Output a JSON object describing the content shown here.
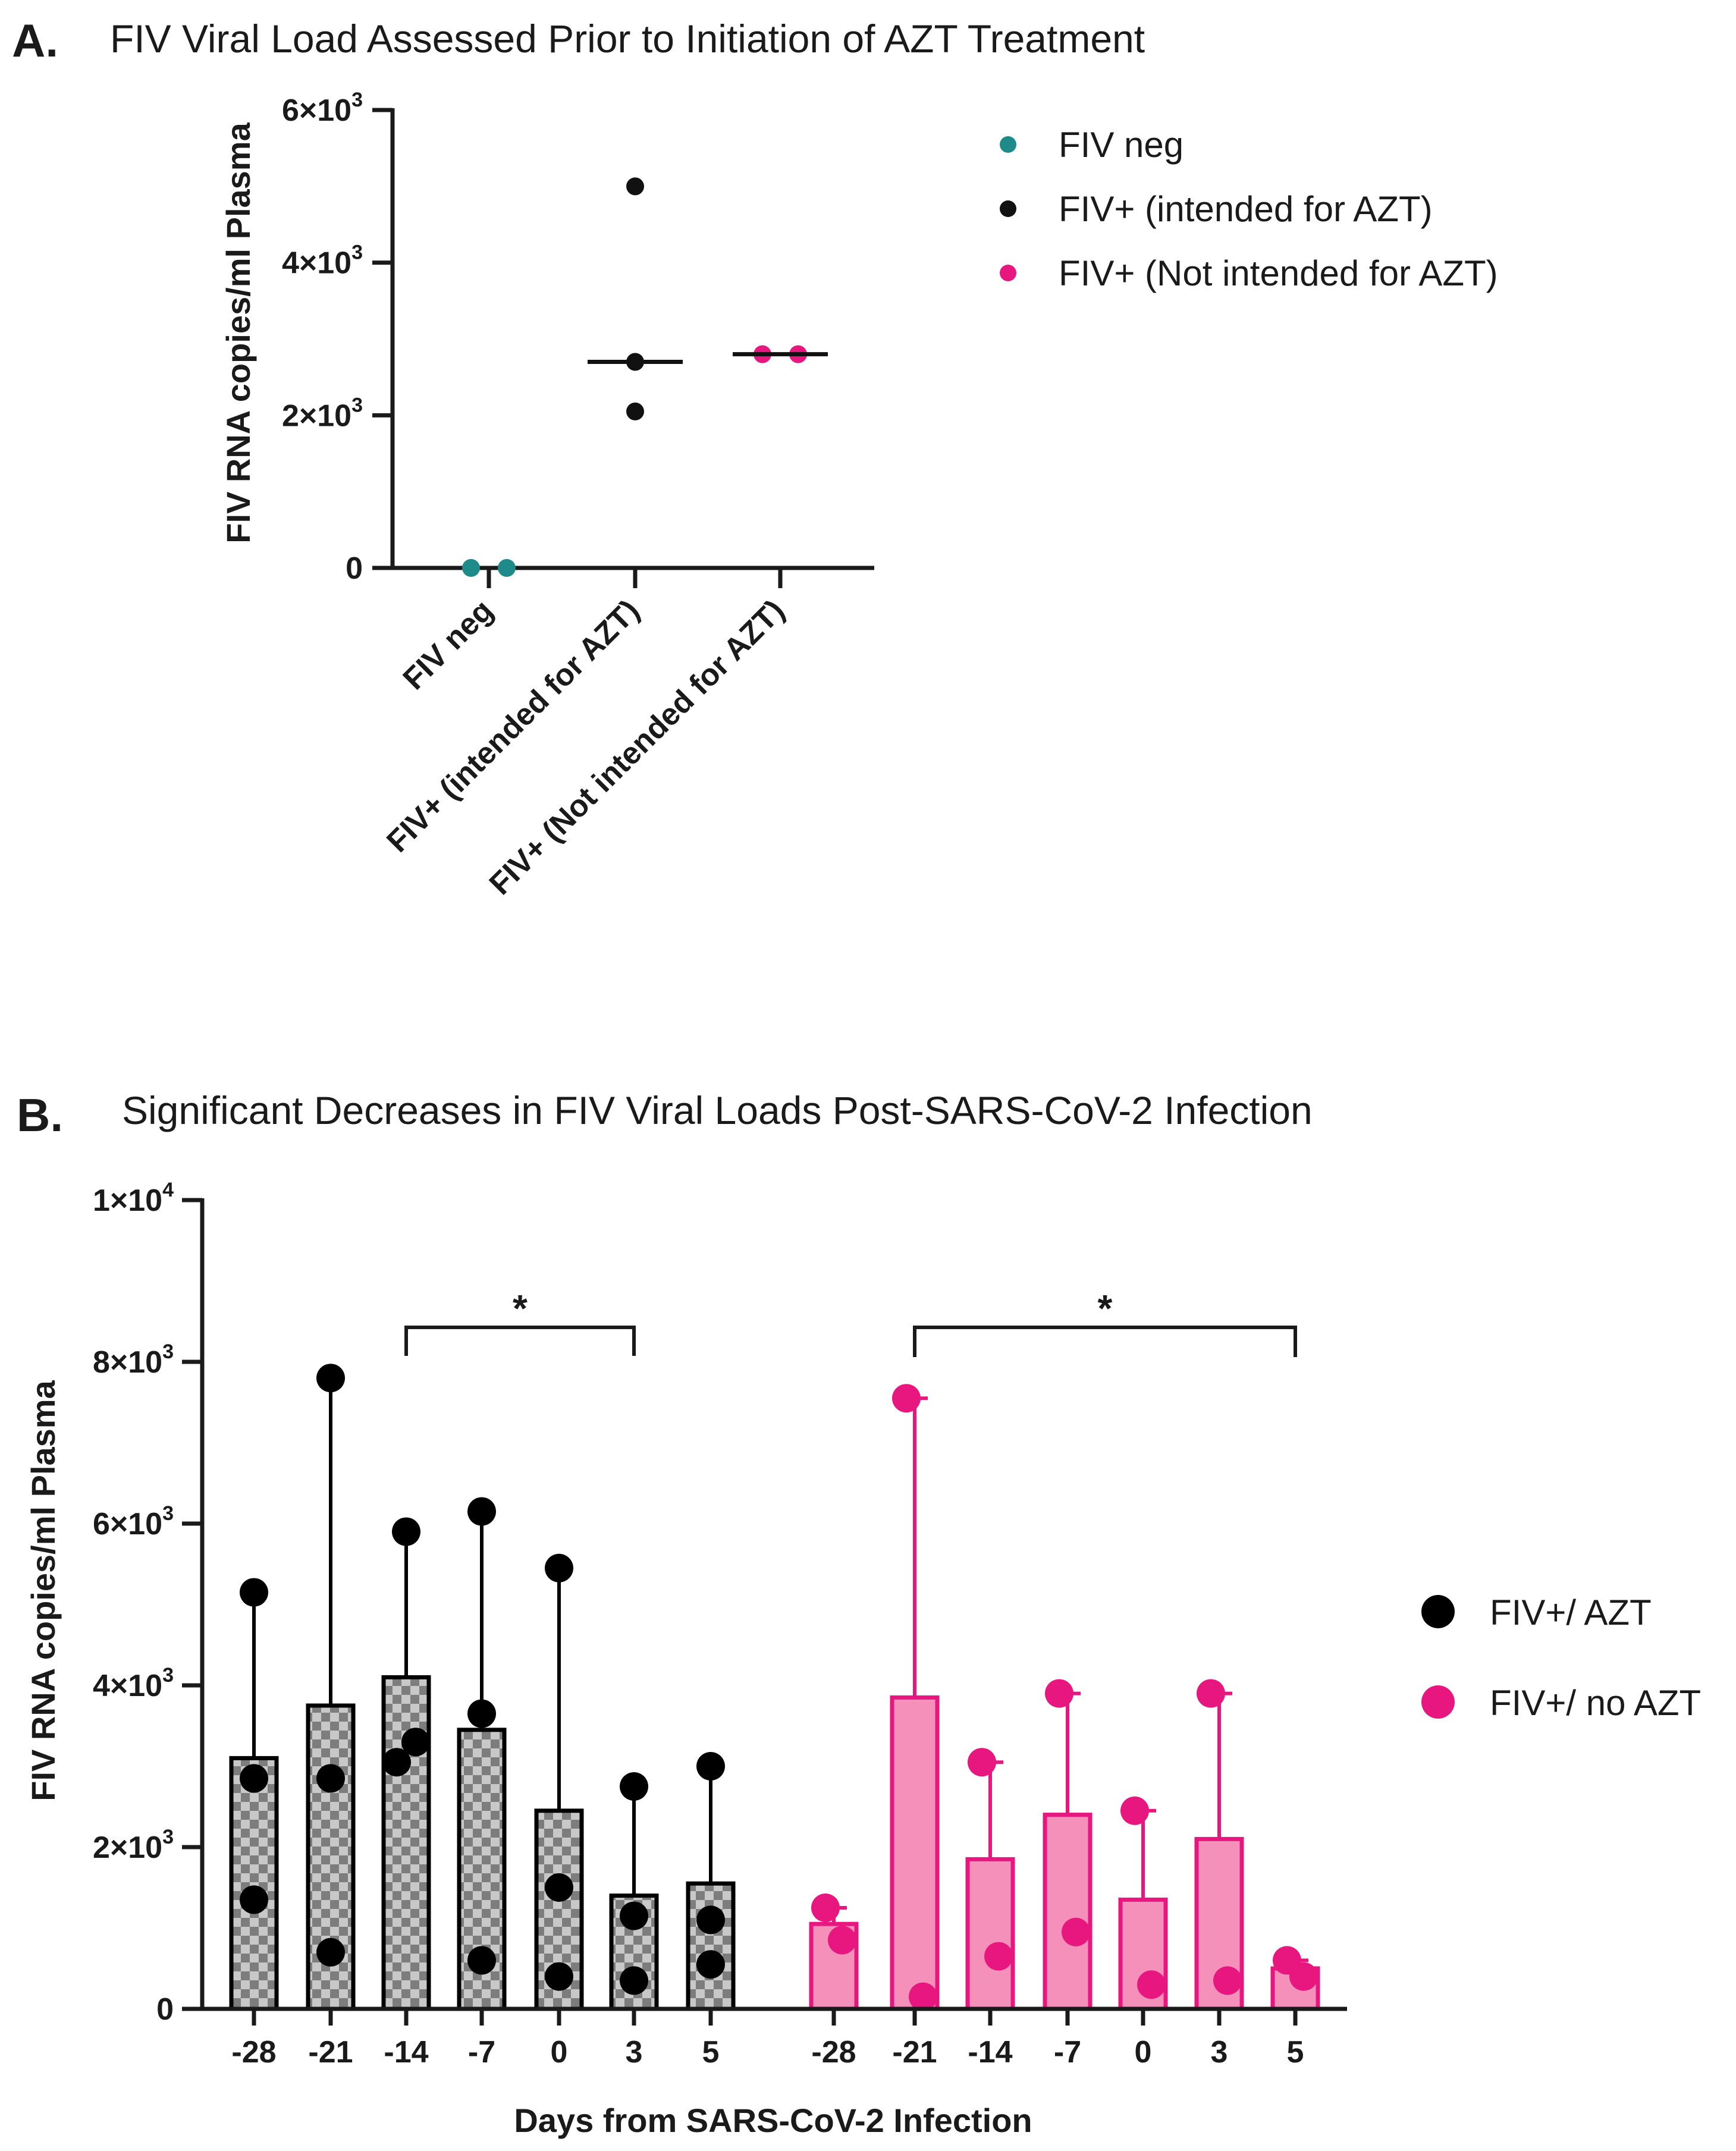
{
  "panel_a": {
    "panel_label": "A.",
    "title": "FIV Viral Load Assessed Prior to Initiation of AZT Treatment",
    "y_tick_labels": [
      {
        "base": "0",
        "sup": ""
      },
      {
        "base": "2×10",
        "sup": "3"
      },
      {
        "base": "4×10",
        "sup": "3"
      },
      {
        "base": "6×10",
        "sup": "3"
      }
    ],
    "ylabel": "FIV RNA copies/ml Plasma",
    "legend": [
      {
        "label": "FIV neg",
        "color": "#1f8a8a"
      },
      {
        "label": "FIV+ (intended for AZT)",
        "color": "#111111"
      },
      {
        "label": "FIV+ (Not intended for AZT)",
        "color": "#e8177f"
      }
    ]
  },
  "panel_b": {
    "panel_label": "B.",
    "title": "Significant Decreases in FIV Viral Loads Post-SARS-CoV-2 Infection",
    "y_tick_labels": [
      {
        "base": "0",
        "sup": ""
      },
      {
        "base": "2×10",
        "sup": "3"
      },
      {
        "base": "4×10",
        "sup": "3"
      },
      {
        "base": "6×10",
        "sup": "3"
      },
      {
        "base": "8×10",
        "sup": "3"
      },
      {
        "base": "1×10",
        "sup": "4"
      }
    ],
    "ylabel": "FIV RNA copies/ml Plasma",
    "xlabel": "Days from SARS-CoV-2 Infection",
    "significance_marks": [
      "*",
      "*"
    ],
    "legend": [
      {
        "label": "FIV+/ AZT",
        "color": "#000000"
      },
      {
        "label": "FIV+/ no AZT",
        "color": "#e8177f"
      }
    ]
  },
  "chart_data": [
    {
      "type": "scatter",
      "title": "FIV Viral Load Assessed Prior to Initiation of AZT Treatment",
      "ylabel": "FIV RNA copies/ml Plasma",
      "ylim": [
        0,
        6000
      ],
      "yticks": [
        0,
        2000,
        4000,
        6000
      ],
      "categories": [
        "FIV neg",
        "FIV+ (intended for AZT)",
        "FIV+ (Not intended for AZT)"
      ],
      "grid": false,
      "legend_position": "right",
      "series": [
        {
          "name": "FIV neg",
          "color": "#1f8a8a",
          "values": [
            0,
            0
          ],
          "median": null
        },
        {
          "name": "FIV+ (intended for AZT)",
          "color": "#111111",
          "values": [
            5000,
            2700,
            2050
          ],
          "median": 2700
        },
        {
          "name": "FIV+ (Not intended for AZT)",
          "color": "#e8177f",
          "values": [
            2800,
            2800
          ],
          "median": 2800
        }
      ]
    },
    {
      "type": "bar",
      "title": "Significant Decreases in FIV Viral Loads Post-SARS-CoV-2 Infection",
      "ylabel": "FIV RNA copies/ml Plasma",
      "xlabel": "Days from SARS-CoV-2 Infection",
      "ylim": [
        0,
        10000
      ],
      "yticks": [
        0,
        2000,
        4000,
        6000,
        8000,
        10000
      ],
      "categories": [
        "-28",
        "-21",
        "-14",
        "-7",
        "0",
        "3",
        "5"
      ],
      "grid": false,
      "legend_position": "right",
      "series": [
        {
          "name": "FIV+/ AZT",
          "color": "#000000",
          "fill": "checkered-gray",
          "values": [
            3100,
            3750,
            4100,
            3450,
            2450,
            1400,
            1550
          ],
          "error_upper": [
            5150,
            7800,
            5900,
            6150,
            5450,
            2750,
            3000
          ],
          "points": [
            [
              5150,
              2850,
              1350
            ],
            [
              7800,
              2850,
              700
            ],
            [
              5900,
              3050,
              3300
            ],
            [
              6150,
              3650,
              600
            ],
            [
              5450,
              1500,
              400
            ],
            [
              2750,
              1150,
              350
            ],
            [
              3000,
              1100,
              550
            ]
          ]
        },
        {
          "name": "FIV+/ no AZT",
          "color": "#e8177f",
          "fill": "#f590ba",
          "values": [
            1050,
            3850,
            1850,
            2400,
            1350,
            2100,
            500
          ],
          "error_upper": [
            1250,
            7550,
            3050,
            3900,
            2450,
            3900,
            600
          ],
          "points": [
            [
              1250,
              850
            ],
            [
              7550,
              150
            ],
            [
              3050,
              650
            ],
            [
              3900,
              950
            ],
            [
              2450,
              300
            ],
            [
              3900,
              350
            ],
            [
              600,
              400
            ]
          ]
        }
      ],
      "significance": [
        {
          "series": "FIV+/ AZT",
          "from": "-14",
          "to": "3",
          "label": "*"
        },
        {
          "series": "FIV+/ no AZT",
          "from": "-21",
          "to": "5",
          "label": "*"
        }
      ]
    }
  ]
}
